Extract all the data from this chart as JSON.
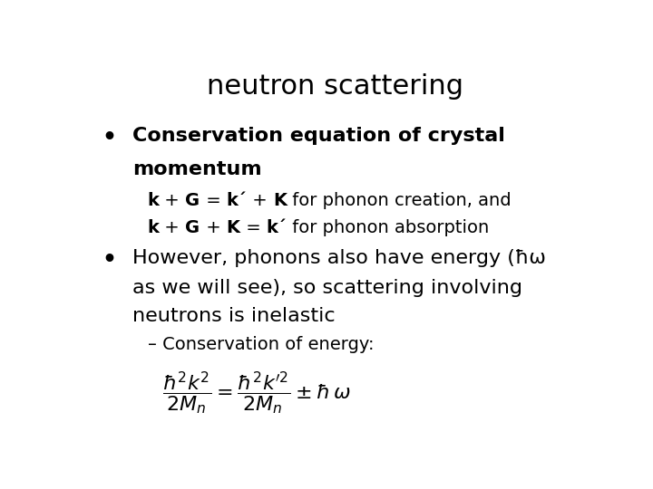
{
  "title": "neutron scattering",
  "title_fontsize": 22,
  "background_color": "#ffffff",
  "text_color": "#000000",
  "bullet1_line1": "Conservation equation of crystal",
  "bullet1_line2": "momentum",
  "sub_line1_parts": [
    {
      "text": "k",
      "bold": true
    },
    {
      "text": " + ",
      "bold": false
    },
    {
      "text": "G",
      "bold": true
    },
    {
      "text": " = ",
      "bold": false
    },
    {
      "text": "k´",
      "bold": true
    },
    {
      "text": " + ",
      "bold": false
    },
    {
      "text": "K",
      "bold": true
    },
    {
      "text": " for phonon creation, and",
      "bold": false
    }
  ],
  "sub_line2_parts": [
    {
      "text": "k",
      "bold": true
    },
    {
      "text": " + ",
      "bold": false
    },
    {
      "text": "G",
      "bold": true
    },
    {
      "text": " + ",
      "bold": false
    },
    {
      "text": "K",
      "bold": true
    },
    {
      "text": " = ",
      "bold": false
    },
    {
      "text": "k´",
      "bold": true
    },
    {
      "text": " for phonon absorption",
      "bold": false
    }
  ],
  "bullet2_line1": "However, phonons also have energy (ħω",
  "bullet2_line2": "as we will see), so scattering involving",
  "bullet2_line3": "neutrons is inelastic",
  "sub_bullet": "– Conservation of energy:",
  "body_fontsize": 16,
  "sub_fontsize": 14,
  "eq_fontsize": 16
}
